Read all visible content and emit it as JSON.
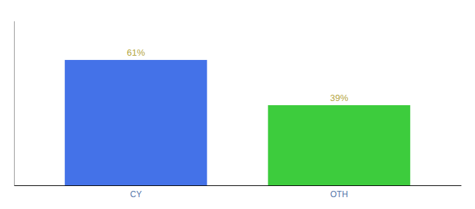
{
  "chart_data": {
    "type": "bar",
    "categories": [
      "CY",
      "OTH"
    ],
    "values": [
      61,
      39
    ],
    "value_labels": [
      "61%",
      "39%"
    ],
    "colors": [
      "#4472e8",
      "#3dcc3d"
    ],
    "ylim": [
      0,
      80
    ],
    "data_labels": true,
    "tick_labels": "x",
    "grid": false
  }
}
